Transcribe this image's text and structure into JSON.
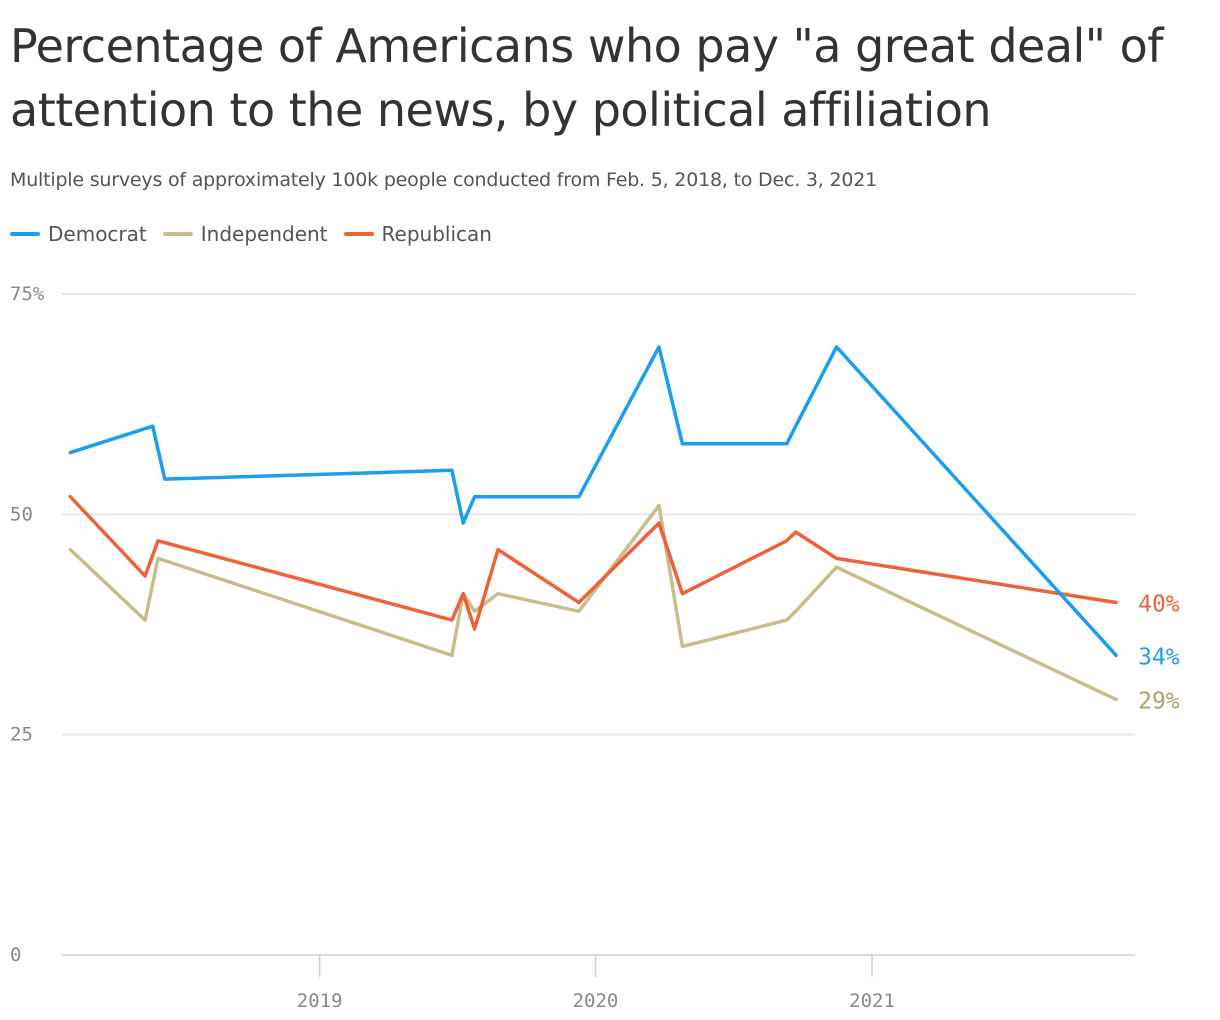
{
  "chart_data": {
    "type": "line",
    "title": "Percentage of Americans who pay \"a great deal\" of attention to the news, by political affiliation",
    "subtitle": "Multiple surveys of approximately 100k people conducted from Feb. 5, 2018, to Dec. 3, 2021",
    "xlabel": "",
    "ylabel": "",
    "x_type": "date",
    "xlim": [
      "2018-01-25",
      "2021-12-15"
    ],
    "ylim": [
      0,
      75
    ],
    "y_ticks": [
      {
        "value": 75,
        "label": "75%"
      },
      {
        "value": 50,
        "label": "50"
      },
      {
        "value": 25,
        "label": "25"
      },
      {
        "value": 0,
        "label": "0"
      }
    ],
    "x_ticks": [
      {
        "value": "2019-01-01",
        "label": "2019"
      },
      {
        "value": "2020-01-01",
        "label": "2020"
      },
      {
        "value": "2021-01-01",
        "label": "2021"
      }
    ],
    "grid": true,
    "legend": {
      "position": "top-left"
    },
    "series": [
      {
        "name": "Democrat",
        "color": "#1a9ef0",
        "end_label": "34%",
        "points": [
          {
            "x": "2018-02-05",
            "y": 57
          },
          {
            "x": "2018-05-25",
            "y": 60
          },
          {
            "x": "2018-06-10",
            "y": 54
          },
          {
            "x": "2019-06-25",
            "y": 55
          },
          {
            "x": "2019-07-10",
            "y": 49
          },
          {
            "x": "2019-07-25",
            "y": 52
          },
          {
            "x": "2019-12-10",
            "y": 52
          },
          {
            "x": "2020-03-25",
            "y": 69
          },
          {
            "x": "2020-04-25",
            "y": 58
          },
          {
            "x": "2020-09-10",
            "y": 58
          },
          {
            "x": "2020-09-22",
            "y": 60
          },
          {
            "x": "2020-11-15",
            "y": 69
          },
          {
            "x": "2021-11-20",
            "y": 34
          }
        ]
      },
      {
        "name": "Independent",
        "color": "#c9bd8a",
        "end_label": "29%",
        "points": [
          {
            "x": "2018-02-05",
            "y": 46
          },
          {
            "x": "2018-05-15",
            "y": 38
          },
          {
            "x": "2018-06-01",
            "y": 45
          },
          {
            "x": "2019-06-25",
            "y": 34
          },
          {
            "x": "2019-07-10",
            "y": 41
          },
          {
            "x": "2019-07-25",
            "y": 39
          },
          {
            "x": "2019-08-25",
            "y": 41
          },
          {
            "x": "2019-12-10",
            "y": 39
          },
          {
            "x": "2020-03-25",
            "y": 51
          },
          {
            "x": "2020-04-25",
            "y": 35
          },
          {
            "x": "2020-09-10",
            "y": 38
          },
          {
            "x": "2020-09-22",
            "y": 39
          },
          {
            "x": "2020-11-15",
            "y": 44
          },
          {
            "x": "2021-11-20",
            "y": 29
          }
        ]
      },
      {
        "name": "Republican",
        "color": "#ee6139",
        "end_label": "40%",
        "points": [
          {
            "x": "2018-02-05",
            "y": 52
          },
          {
            "x": "2018-05-15",
            "y": 43
          },
          {
            "x": "2018-06-01",
            "y": 47
          },
          {
            "x": "2019-06-25",
            "y": 38
          },
          {
            "x": "2019-07-10",
            "y": 41
          },
          {
            "x": "2019-07-25",
            "y": 37
          },
          {
            "x": "2019-08-25",
            "y": 46
          },
          {
            "x": "2019-12-10",
            "y": 40
          },
          {
            "x": "2020-03-25",
            "y": 49
          },
          {
            "x": "2020-04-25",
            "y": 41
          },
          {
            "x": "2020-09-10",
            "y": 47
          },
          {
            "x": "2020-09-22",
            "y": 48
          },
          {
            "x": "2020-11-15",
            "y": 45
          },
          {
            "x": "2021-11-20",
            "y": 40
          }
        ]
      }
    ]
  }
}
